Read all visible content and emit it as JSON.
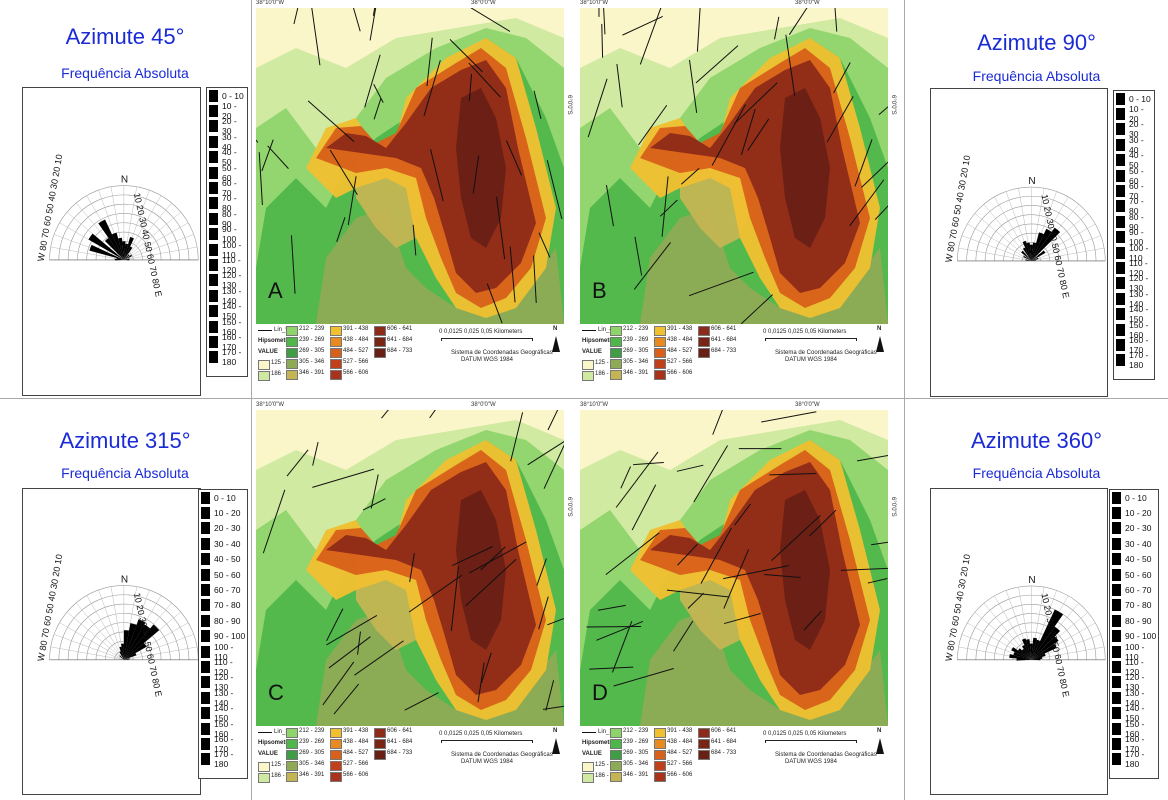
{
  "rose_panels": [
    {
      "title": "Azimute 45°",
      "subtitle": "Frequência Absoluta"
    },
    {
      "title": "Azimute 90°",
      "subtitle": "Frequência Absoluta"
    },
    {
      "title": "Azimute 315°",
      "subtitle": "Frequência Absoluta"
    },
    {
      "title": "Azimute 360°",
      "subtitle": "Frequência Absoluta"
    }
  ],
  "rose_scale_left": "W 80 70 60 50 40 30 20 10",
  "rose_scale_right": "10 20 30 40 50 60 70 80 E",
  "rose_n": "N",
  "freq_classes": [
    "0 - 10",
    "10 - 20",
    "20 - 30",
    "30 - 40",
    "40 - 50",
    "50 - 60",
    "60 - 70",
    "70 - 80",
    "80 - 90",
    "90 - 100",
    "100 - 110",
    "110 - 120",
    "120 - 130",
    "130 - 140",
    "140 - 150",
    "150 - 160",
    "160 - 170",
    "170 - 180"
  ],
  "maps": [
    {
      "letter": "A",
      "layer": "Lin_90",
      "top_left": "38°10'0\"W",
      "top_mid": "38°0'0\"W",
      "side": "6°0'0\"S",
      "scale": "0  0,0125 0,025      0,05 Kilometers"
    },
    {
      "letter": "B",
      "layer": "Lin_45",
      "top_left": "38°10'0\"W",
      "top_mid": "38°0'0\"W",
      "side": "6°0'0\"S",
      "scale": "0  0,0125 0,025      0,05 Kilometers"
    },
    {
      "letter": "C",
      "layer": "Lin_315",
      "top_left": "38°10'0\"W",
      "top_mid": "38°0'0\"W",
      "side": "6°0'0\"S",
      "scale": "0  0,0125 0,025      0,05 Kilometers"
    },
    {
      "letter": "D",
      "layer": "Lin_360",
      "top_left": "38°10'0\"W",
      "top_mid": "38°0'0\"W",
      "side": "6°0'0\"S",
      "scale": "0  0,0125 0,025      0,05 Kilometers"
    }
  ],
  "map_legend": {
    "hipsometria": "Hipsometria",
    "value": "VALUE",
    "classes": [
      {
        "label": "125 - 186",
        "color": "#fbf6c9"
      },
      {
        "label": "186 - 212",
        "color": "#cfe9a0"
      },
      {
        "label": "212 - 239",
        "color": "#8fd46b"
      },
      {
        "label": "239 - 269",
        "color": "#4fb74a"
      },
      {
        "label": "269 - 305",
        "color": "#3f9d45"
      },
      {
        "label": "305 - 346",
        "color": "#8faa55"
      },
      {
        "label": "346 - 391",
        "color": "#c4b453"
      },
      {
        "label": "391 - 438",
        "color": "#f0c030"
      },
      {
        "label": "438 - 484",
        "color": "#e98a20"
      },
      {
        "label": "484 - 527",
        "color": "#d8601a"
      },
      {
        "label": "527 - 566",
        "color": "#c0401a"
      },
      {
        "label": "566 - 606",
        "color": "#a8321a"
      },
      {
        "label": "606 - 641",
        "color": "#8e2a18"
      },
      {
        "label": "641 - 684",
        "color": "#7a2416"
      },
      {
        "label": "684 - 733",
        "color": "#6a1f14"
      }
    ],
    "datum_1": "Sistema de Coordenadas Geográficas",
    "datum_2": "DATUM WGS 1984",
    "north": "N"
  }
}
